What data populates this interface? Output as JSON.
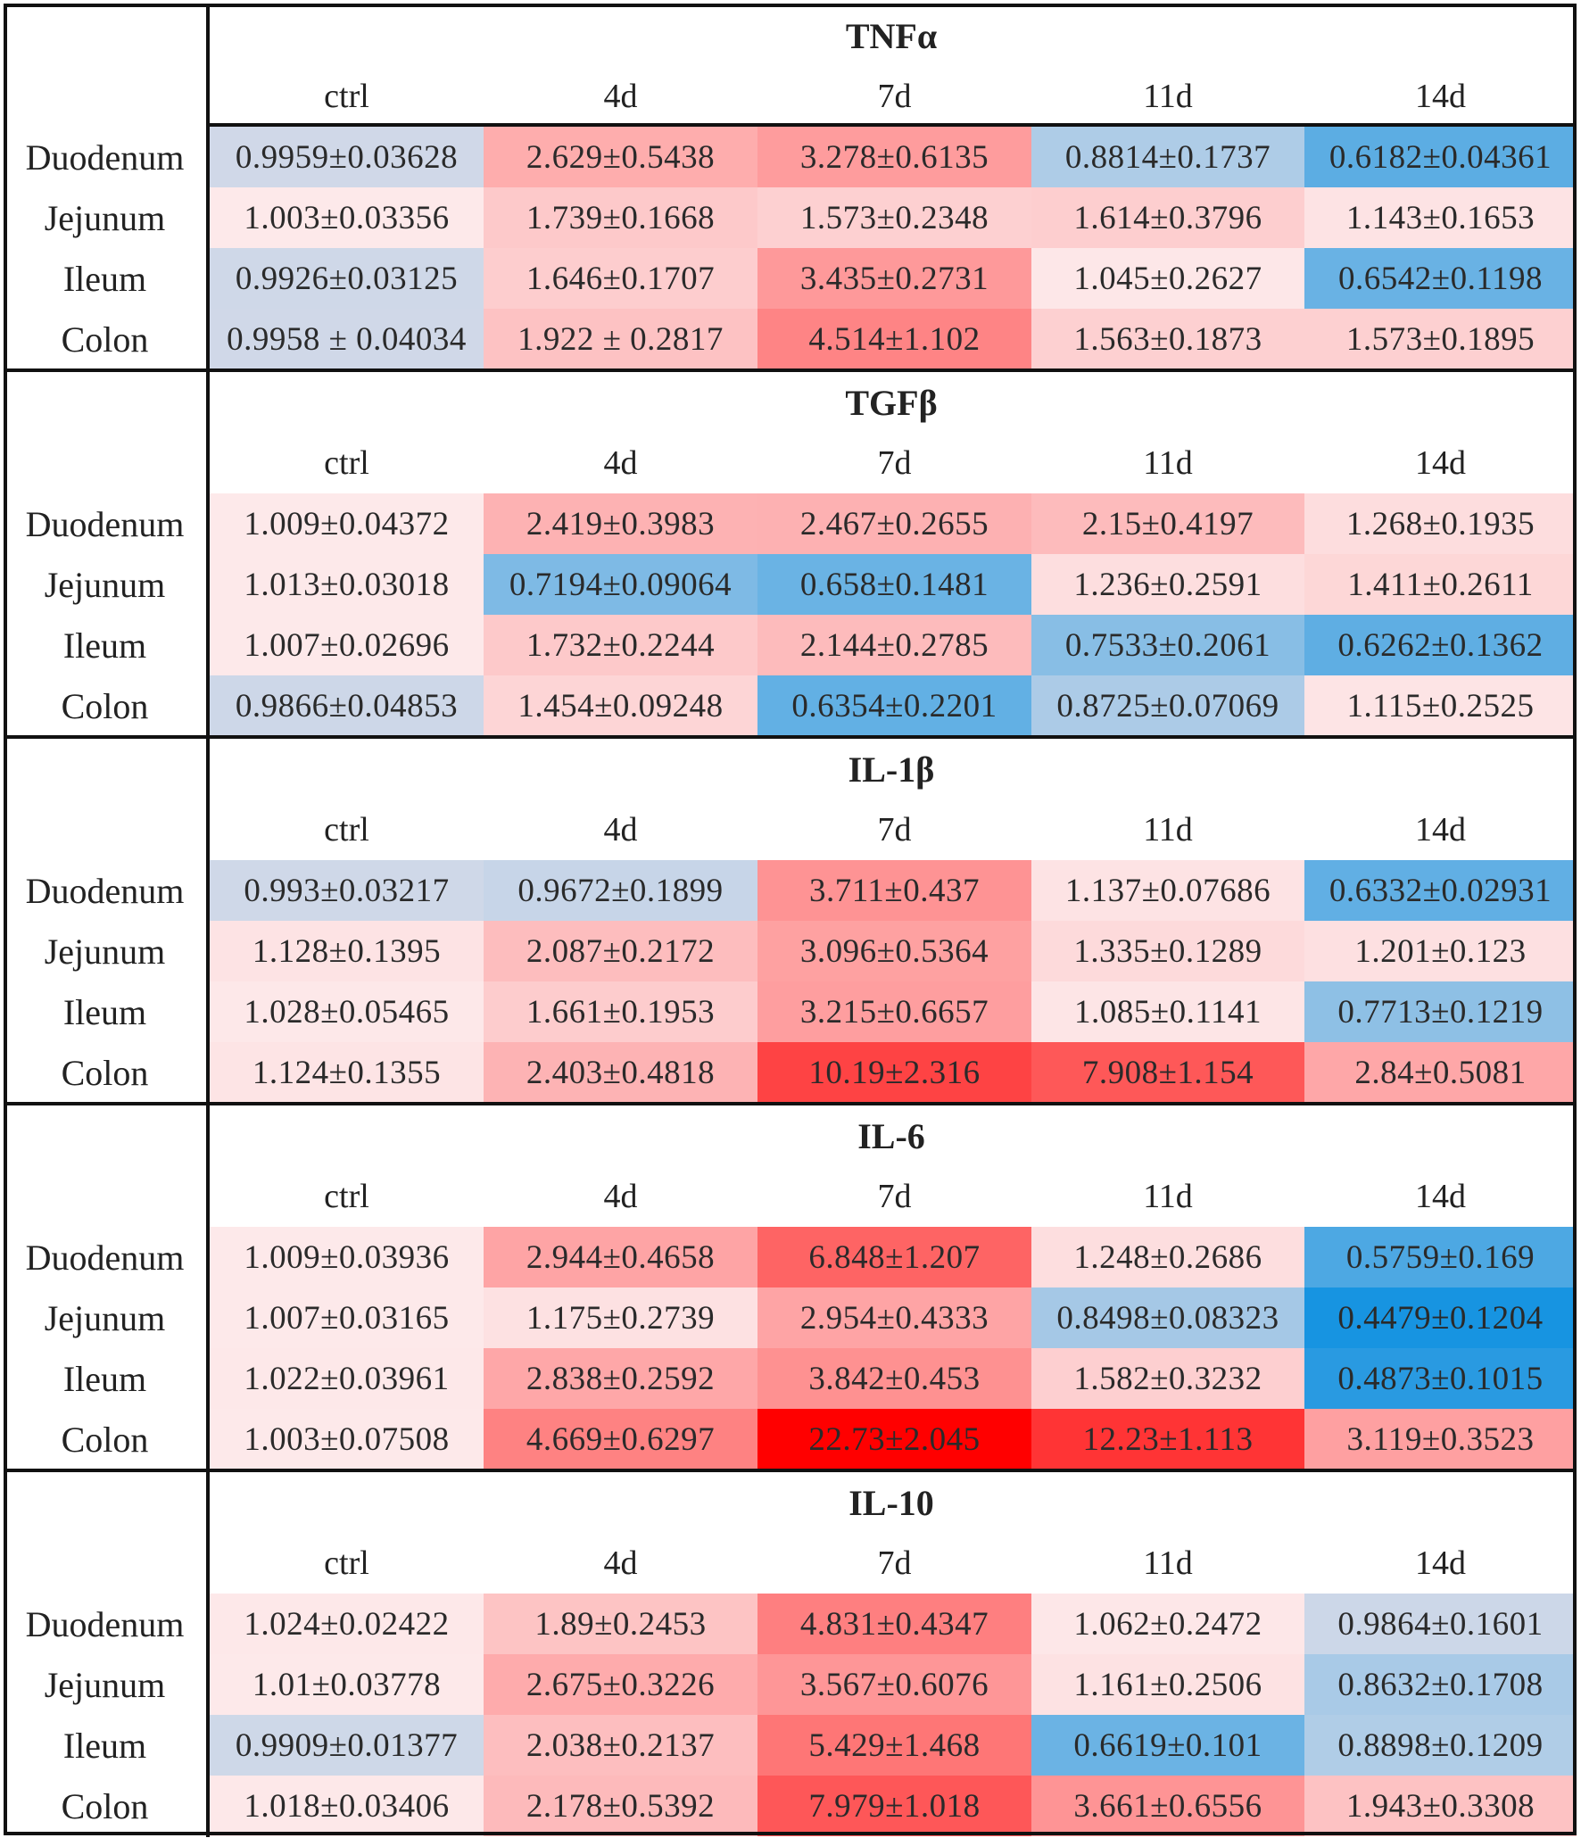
{
  "chart_data": {
    "type": "heatmap",
    "columns": [
      "ctrl",
      "4d",
      "7d",
      "11d",
      "14d"
    ],
    "rows": [
      "Duodenum",
      "Jejunum",
      "Ileum",
      "Colon"
    ],
    "colors": {
      "low": "#0a8fe0",
      "neutral": "#fde9ea",
      "high": "#ff0000"
    },
    "panels": [
      {
        "title": "TNFα",
        "cells": [
          [
            "0.9959±0.03628",
            "2.629±0.5438",
            "3.278±0.6135",
            "0.8814±0.1737",
            "0.6182±0.04361"
          ],
          [
            "1.003±0.03356",
            "1.739±0.1668",
            "1.573±0.2348",
            "1.614±0.3796",
            "1.143±0.1653"
          ],
          [
            "0.9926±0.03125",
            "1.646±0.1707",
            "3.435±0.2731",
            "1.045±0.2627",
            "0.6542±0.1198"
          ],
          [
            "0.9958 ± 0.04034",
            "1.922 ± 0.2817",
            "4.514±1.102",
            "1.563±0.1873",
            "1.573±0.1895"
          ]
        ],
        "values": [
          [
            0.9959,
            2.629,
            3.278,
            0.8814,
            0.6182
          ],
          [
            1.003,
            1.739,
            1.573,
            1.614,
            1.143
          ],
          [
            0.9926,
            1.646,
            3.435,
            1.045,
            0.6542
          ],
          [
            0.9958,
            1.922,
            4.514,
            1.563,
            1.573
          ]
        ]
      },
      {
        "title": "TGFβ",
        "cells": [
          [
            "1.009±0.04372",
            "2.419±0.3983",
            "2.467±0.2655",
            "2.15±0.4197",
            "1.268±0.1935"
          ],
          [
            "1.013±0.03018",
            "0.7194±0.09064",
            "0.658±0.1481",
            "1.236±0.2591",
            "1.411±0.2611"
          ],
          [
            "1.007±0.02696",
            "1.732±0.2244",
            "2.144±0.2785",
            "0.7533±0.2061",
            "0.6262±0.1362"
          ],
          [
            "0.9866±0.04853",
            "1.454±0.09248",
            "0.6354±0.2201",
            "0.8725±0.07069",
            "1.115±0.2525"
          ]
        ],
        "values": [
          [
            1.009,
            2.419,
            2.467,
            2.15,
            1.268
          ],
          [
            1.013,
            0.7194,
            0.658,
            1.236,
            1.411
          ],
          [
            1.007,
            1.732,
            2.144,
            0.7533,
            0.6262
          ],
          [
            0.9866,
            1.454,
            0.6354,
            0.8725,
            1.115
          ]
        ]
      },
      {
        "title": "IL-1β",
        "cells": [
          [
            "0.993±0.03217",
            "0.9672±0.1899",
            "3.711±0.437",
            "1.137±0.07686",
            "0.6332±0.02931"
          ],
          [
            "1.128±0.1395",
            "2.087±0.2172",
            "3.096±0.5364",
            "1.335±0.1289",
            "1.201±0.123"
          ],
          [
            "1.028±0.05465",
            "1.661±0.1953",
            "3.215±0.6657",
            "1.085±0.1141",
            "0.7713±0.1219"
          ],
          [
            "1.124±0.1355",
            "2.403±0.4818",
            "10.19±2.316",
            "7.908±1.154",
            "2.84±0.5081"
          ]
        ],
        "values": [
          [
            0.993,
            0.9672,
            3.711,
            1.137,
            0.6332
          ],
          [
            1.128,
            2.087,
            3.096,
            1.335,
            1.201
          ],
          [
            1.028,
            1.661,
            3.215,
            1.085,
            0.7713
          ],
          [
            1.124,
            2.403,
            10.19,
            7.908,
            2.84
          ]
        ]
      },
      {
        "title": "IL-6",
        "cells": [
          [
            "1.009±0.03936",
            "2.944±0.4658",
            "6.848±1.207",
            "1.248±0.2686",
            "0.5759±0.169"
          ],
          [
            "1.007±0.03165",
            "1.175±0.2739",
            "2.954±0.4333",
            "0.8498±0.08323",
            "0.4479±0.1204"
          ],
          [
            "1.022±0.03961",
            "2.838±0.2592",
            "3.842±0.453",
            "1.582±0.3232",
            "0.4873±0.1015"
          ],
          [
            "1.003±0.07508",
            "4.669±0.6297",
            "22.73±2.045",
            "12.23±1.113",
            "3.119±0.3523"
          ]
        ],
        "values": [
          [
            1.009,
            2.944,
            6.848,
            1.248,
            0.5759
          ],
          [
            1.007,
            1.175,
            2.954,
            0.8498,
            0.4479
          ],
          [
            1.022,
            2.838,
            3.842,
            1.582,
            0.4873
          ],
          [
            1.003,
            4.669,
            22.73,
            12.23,
            3.119
          ]
        ]
      },
      {
        "title": "IL-10",
        "cells": [
          [
            "1.024±0.02422",
            "1.89±0.2453",
            "4.831±0.4347",
            "1.062±0.2472",
            "0.9864±0.1601"
          ],
          [
            "1.01±0.03778",
            "2.675±0.3226",
            "3.567±0.6076",
            "1.161±0.2506",
            "0.8632±0.1708"
          ],
          [
            "0.9909±0.01377",
            "2.038±0.2137",
            "5.429±1.468",
            "0.6619±0.101",
            "0.8898±0.1209"
          ],
          [
            "1.018±0.03406",
            "2.178±0.5392",
            "7.979±1.018",
            "3.661±0.6556",
            "1.943±0.3308"
          ]
        ],
        "values": [
          [
            1.024,
            1.89,
            4.831,
            1.062,
            0.9864
          ],
          [
            1.01,
            2.675,
            3.567,
            1.161,
            0.8632
          ],
          [
            0.9909,
            2.038,
            5.429,
            0.6619,
            0.8898
          ],
          [
            1.018,
            2.178,
            7.979,
            3.661,
            1.943
          ]
        ]
      }
    ]
  }
}
